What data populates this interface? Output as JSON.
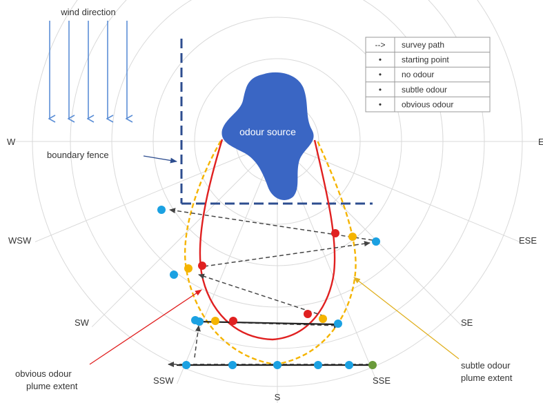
{
  "wind_label": "wind direction",
  "directions": {
    "w": "W",
    "e": "E",
    "wsw": "WSW",
    "ese": "ESE",
    "sw": "SW",
    "se": "SE",
    "ssw": "SSW",
    "sse": "SSE",
    "s": "S"
  },
  "source_label": "odour source",
  "fence_label": "boundary fence",
  "obvious_label_line1": "obvious odour",
  "obvious_label_line2": "plume extent",
  "subtle_label_line1": "subtle odour",
  "subtle_label_line2": "plume extent",
  "legend": [
    {
      "symbol": "-->",
      "label": "survey path"
    },
    {
      "symbol": "•",
      "label": "starting point",
      "color": "#6a9a3a"
    },
    {
      "symbol": "•",
      "label": "no odour",
      "color": "#1ba1e2"
    },
    {
      "symbol": "•",
      "label": "subtle odour",
      "color": "#f5b400"
    },
    {
      "symbol": "•",
      "label": "obvious odour",
      "color": "#e02020"
    }
  ],
  "colors": {
    "source": "#3a66c4",
    "fence": "#2d4d8f",
    "wind_arrow": "#5b8ed6",
    "obvious": "#e02020",
    "subtle": "#f5b400",
    "no_odour": "#1ba1e2",
    "start": "#6a9a3a",
    "path": "#444444",
    "grid": "#d9d9d9"
  }
}
